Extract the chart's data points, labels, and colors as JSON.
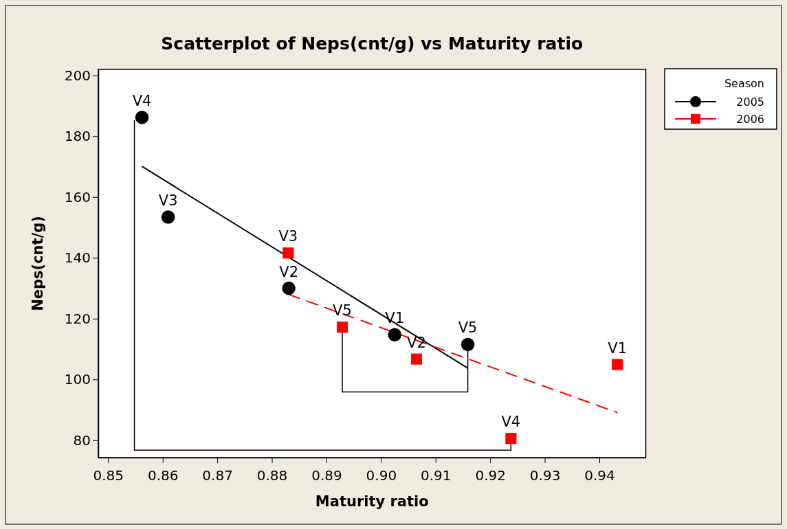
{
  "chart_data": {
    "type": "scatter",
    "title": "Scatterplot of Neps(cnt/g) vs Maturity ratio",
    "xlabel": "Maturity ratio",
    "ylabel": "Neps(cnt/g)",
    "legend_title": "Season",
    "xlim": [
      0.8482,
      0.9485
    ],
    "xticks": [
      {
        "value": 0.85,
        "label": "0.85"
      },
      {
        "value": 0.86,
        "label": "0.86"
      },
      {
        "value": 0.87,
        "label": "0.87"
      },
      {
        "value": 0.88,
        "label": "0.88"
      },
      {
        "value": 0.89,
        "label": "0.89"
      },
      {
        "value": 0.9,
        "label": "0.90"
      },
      {
        "value": 0.91,
        "label": "0.91"
      },
      {
        "value": 0.92,
        "label": "0.92"
      },
      {
        "value": 0.93,
        "label": "0.93"
      },
      {
        "value": 0.94,
        "label": "0.94"
      }
    ],
    "ylim": [
      74.3,
      202
    ],
    "yticks": [
      80,
      100,
      120,
      140,
      160,
      180,
      200
    ],
    "grid": false,
    "legend": "top right",
    "series": [
      {
        "name": "2005",
        "type": "scatter",
        "marker": "circle",
        "color": "#000000",
        "x": [
          0.9025,
          0.8831,
          0.861,
          0.8562,
          0.9159
        ],
        "values": [
          114.7,
          130,
          153.4,
          186.2,
          111.5
        ]
      },
      {
        "name": "2006",
        "type": "scatter",
        "marker": "square",
        "color": "#ff0000",
        "x": [
          0.9433,
          0.9065,
          0.883,
          0.9238,
          0.8929
        ],
        "values": [
          104.9,
          106.7,
          141.6,
          80.6,
          117.2
        ]
      },
      {
        "type": "line",
        "line_style": "solid",
        "color": "#000000",
        "x": [
          0.8562,
          0.9159
        ],
        "values": [
          170.1,
          103.7
        ]
      },
      {
        "type": "line",
        "line_style": "dashed",
        "color": "#ff0000",
        "x": [
          0.883,
          0.9433
        ],
        "values": [
          128.0,
          89.1
        ]
      }
    ],
    "annotations": [
      {
        "text": "V1",
        "x": 0.9025,
        "y": 114.7
      },
      {
        "text": "V2",
        "x": 0.8831,
        "y": 130
      },
      {
        "text": "V3",
        "x": 0.861,
        "y": 153.4
      },
      {
        "text": "V4",
        "x": 0.8562,
        "y": 186.2
      },
      {
        "text": "V5",
        "x": 0.9159,
        "y": 111.5
      },
      {
        "text": "V1",
        "x": 0.9433,
        "y": 104.9
      },
      {
        "text": "V2",
        "x": 0.9065,
        "y": 106.7
      },
      {
        "text": "V3",
        "x": 0.883,
        "y": 141.6
      },
      {
        "text": "V4",
        "x": 0.9238,
        "y": 80.6
      },
      {
        "text": "V5",
        "x": 0.8929,
        "y": 117.2
      }
    ]
  }
}
